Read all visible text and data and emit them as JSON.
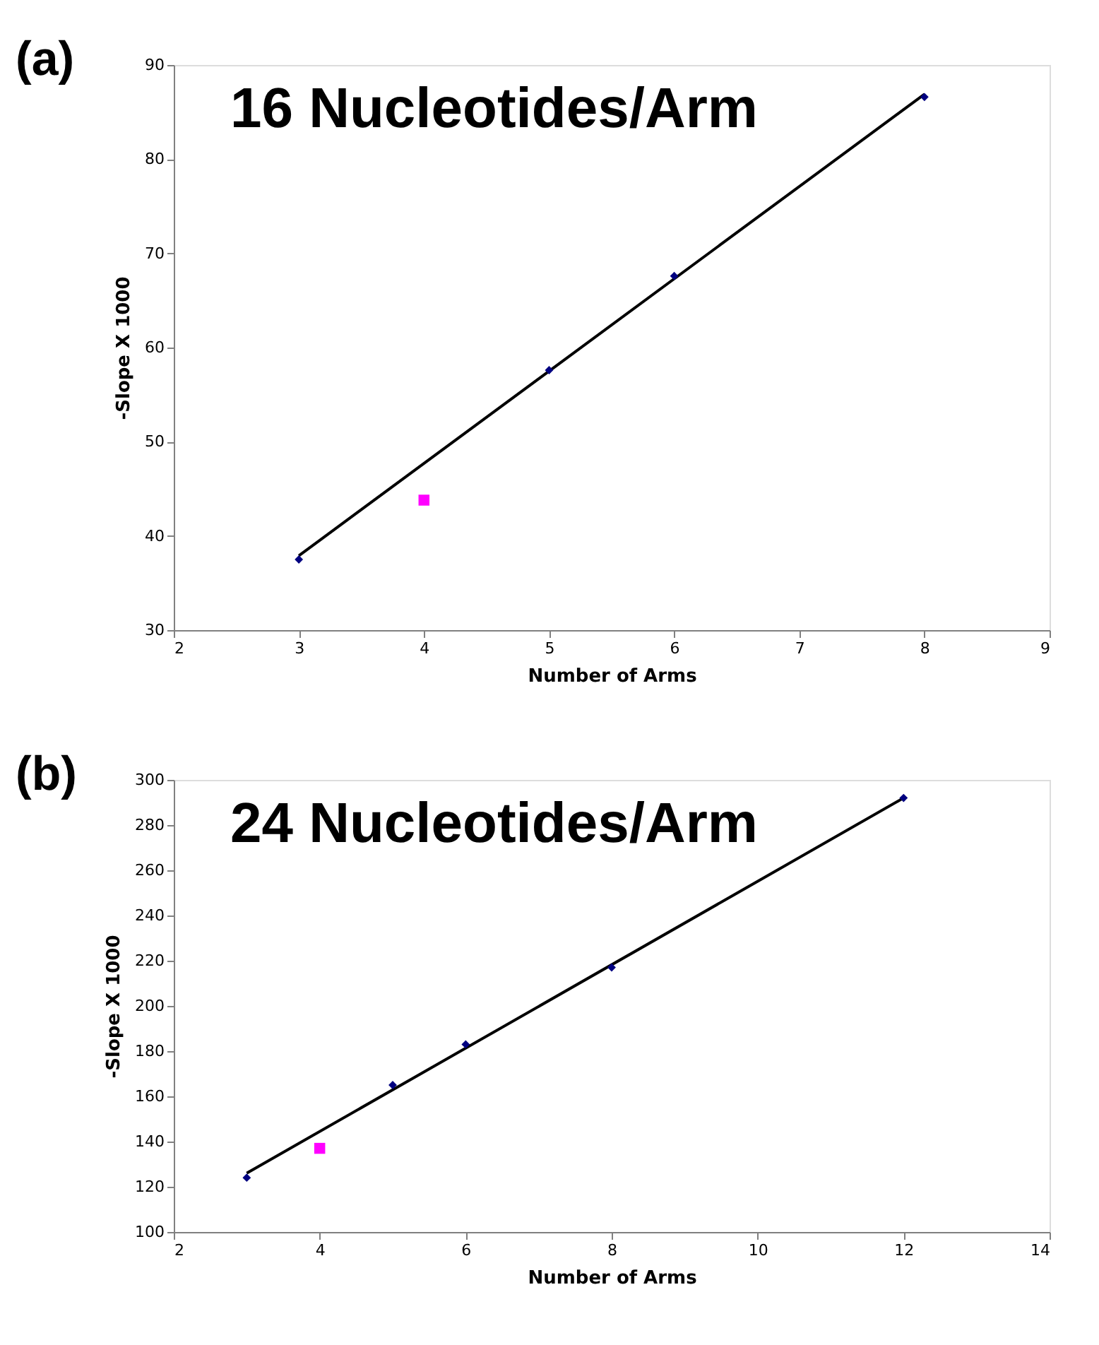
{
  "chart_data": [
    {
      "type": "scatter",
      "title": "16 Nucleotides/Arm",
      "xlabel": "Number of Arms",
      "ylabel": "-Slope X 1000",
      "annotations": [
        "(a)"
      ],
      "xlim": [
        2,
        9
      ],
      "xticks": [
        2,
        3,
        4,
        5,
        6,
        7,
        8,
        9
      ],
      "ylim": [
        30,
        90
      ],
      "yticks": [
        30,
        40,
        50,
        60,
        70,
        80,
        90
      ],
      "grid": false,
      "series": [
        {
          "type": "line",
          "color": "#000000",
          "x": [
            3,
            8
          ],
          "values": [
            37.9,
            86.9
          ],
          "marker": "none",
          "line_style": "solid"
        },
        {
          "type": "scatter",
          "color": "#000080",
          "x": [
            3,
            5,
            6,
            8
          ],
          "values": [
            37.5,
            57.6,
            67.6,
            86.6
          ],
          "marker": "diamond"
        },
        {
          "type": "scatter",
          "color": "#ff00ff",
          "x": [
            4
          ],
          "values": [
            43.8
          ],
          "marker": "square"
        }
      ]
    },
    {
      "type": "scatter",
      "title": "24 Nucleotides/Arm",
      "xlabel": "Number of Arms",
      "ylabel": "-Slope X 1000",
      "annotations": [
        "(b)"
      ],
      "xlim": [
        2,
        14
      ],
      "xticks": [
        2,
        4,
        6,
        8,
        10,
        12,
        14
      ],
      "ylim": [
        100,
        300
      ],
      "yticks": [
        100,
        120,
        140,
        160,
        180,
        200,
        220,
        240,
        260,
        280,
        300
      ],
      "grid": false,
      "series": [
        {
          "type": "line",
          "color": "#000000",
          "x": [
            3,
            12
          ],
          "values": [
            126,
            292
          ],
          "marker": "none",
          "line_style": "solid"
        },
        {
          "type": "scatter",
          "color": "#000080",
          "x": [
            3,
            5,
            6,
            8,
            12
          ],
          "values": [
            124,
            165,
            183,
            217,
            292
          ],
          "marker": "diamond"
        },
        {
          "type": "scatter",
          "color": "#ff00ff",
          "x": [
            4
          ],
          "values": [
            137
          ],
          "marker": "square"
        }
      ]
    }
  ]
}
